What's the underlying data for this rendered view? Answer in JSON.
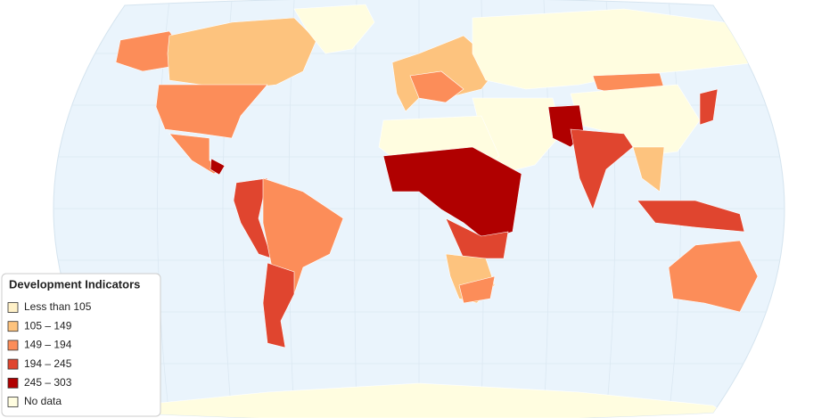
{
  "legend": {
    "title": "Development Indicators",
    "items": [
      {
        "label": "Less than 105",
        "color": "#fff1c8"
      },
      {
        "label": "105 – 149",
        "color": "#fdc37e"
      },
      {
        "label": "149 – 194",
        "color": "#fc8d59"
      },
      {
        "label": "194 – 245",
        "color": "#e0452f"
      },
      {
        "label": "245 – 303",
        "color": "#b00000"
      },
      {
        "label": "No data",
        "color": "#fffde0"
      }
    ]
  }
}
